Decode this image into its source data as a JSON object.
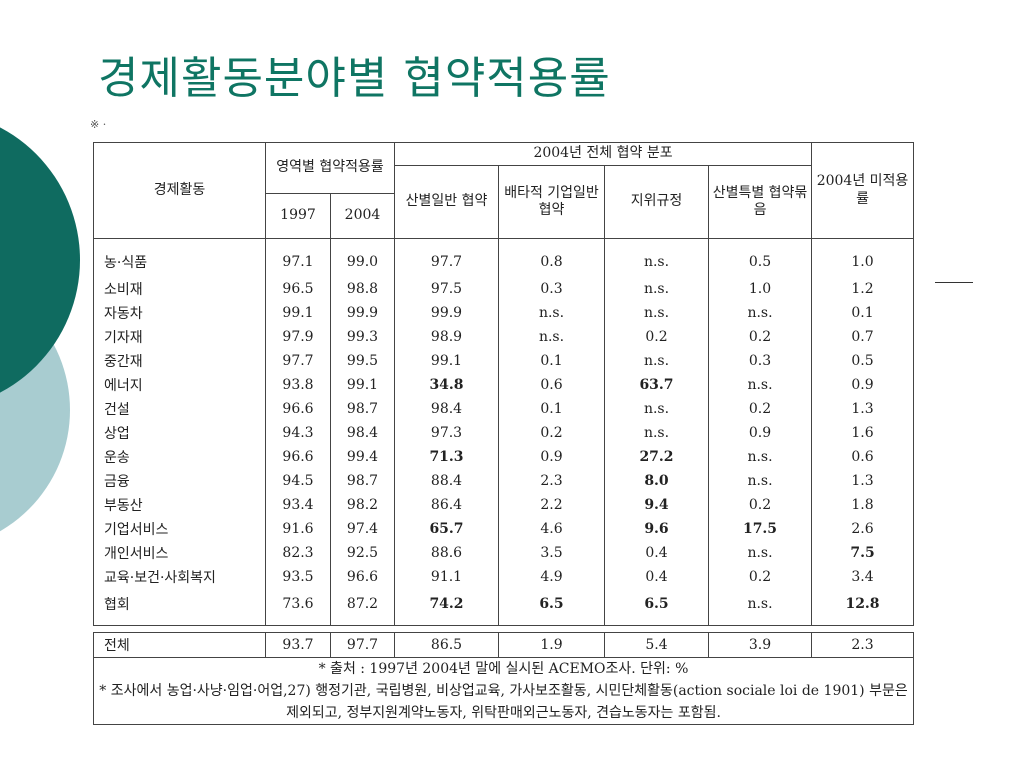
{
  "title": "경제활동분야별 협약적용률",
  "cut_mark": "※ ·",
  "table": {
    "header": {
      "activity": "경제활동",
      "coverage_group": "영역별 협약적용률",
      "years": [
        "1997",
        "2004"
      ],
      "dist_group": "2004년 전체 협약 분포",
      "dist_cols": [
        "산별일반 협약",
        "배타적 기업일반 협약",
        "지위규정",
        "산별특별 협약묶음"
      ],
      "uncovered": "2004년 미적용률"
    },
    "rows": [
      {
        "name": "농·식품",
        "v": [
          "97.1",
          "99.0",
          "97.7",
          "0.8",
          "n.s.",
          "0.5",
          "1.0"
        ],
        "bold": []
      },
      {
        "name": "소비재",
        "v": [
          "96.5",
          "98.8",
          "97.5",
          "0.3",
          "n.s.",
          "1.0",
          "1.2"
        ],
        "bold": []
      },
      {
        "name": "자동차",
        "v": [
          "99.1",
          "99.9",
          "99.9",
          "n.s.",
          "n.s.",
          "n.s.",
          "0.1"
        ],
        "bold": []
      },
      {
        "name": "기자재",
        "v": [
          "97.9",
          "99.3",
          "98.9",
          "n.s.",
          "0.2",
          "0.2",
          "0.7"
        ],
        "bold": []
      },
      {
        "name": "중간재",
        "v": [
          "97.7",
          "99.5",
          "99.1",
          "0.1",
          "n.s.",
          "0.3",
          "0.5"
        ],
        "bold": []
      },
      {
        "name": "에너지",
        "v": [
          "93.8",
          "99.1",
          "34.8",
          "0.6",
          "63.7",
          "n.s.",
          "0.9"
        ],
        "bold": [
          2,
          4
        ]
      },
      {
        "name": "건설",
        "v": [
          "96.6",
          "98.7",
          "98.4",
          "0.1",
          "n.s.",
          "0.2",
          "1.3"
        ],
        "bold": []
      },
      {
        "name": "상업",
        "v": [
          "94.3",
          "98.4",
          "97.3",
          "0.2",
          "n.s.",
          "0.9",
          "1.6"
        ],
        "bold": []
      },
      {
        "name": "운송",
        "v": [
          "96.6",
          "99.4",
          "71.3",
          "0.9",
          "27.2",
          "n.s.",
          "0.6"
        ],
        "bold": [
          2,
          4
        ]
      },
      {
        "name": "금융",
        "v": [
          "94.5",
          "98.7",
          "88.4",
          "2.3",
          "8.0",
          "n.s.",
          "1.3"
        ],
        "bold": [
          4
        ]
      },
      {
        "name": "부동산",
        "v": [
          "93.4",
          "98.2",
          "86.4",
          "2.2",
          "9.4",
          "0.2",
          "1.8"
        ],
        "bold": [
          4
        ]
      },
      {
        "name": "기업서비스",
        "v": [
          "91.6",
          "97.4",
          "65.7",
          "4.6",
          "9.6",
          "17.5",
          "2.6"
        ],
        "bold": [
          2,
          4,
          5
        ]
      },
      {
        "name": "개인서비스",
        "v": [
          "82.3",
          "92.5",
          "88.6",
          "3.5",
          "0.4",
          "n.s.",
          "7.5"
        ],
        "bold": [
          6
        ]
      },
      {
        "name": "교육·보건·사회복지",
        "v": [
          "93.5",
          "96.6",
          "91.1",
          "4.9",
          "0.4",
          "0.2",
          "3.4"
        ],
        "bold": []
      },
      {
        "name": "협회",
        "v": [
          "73.6",
          "87.2",
          "74.2",
          "6.5",
          "6.5",
          "n.s.",
          "12.8"
        ],
        "bold": [
          2,
          3,
          4,
          6
        ]
      }
    ],
    "total": {
      "name": "전체",
      "v": [
        "93.7",
        "97.7",
        "86.5",
        "1.9",
        "5.4",
        "3.9",
        "2.3"
      ]
    },
    "notes": [
      "* 출처 : 1997년 2004년 말에 실시된 ACEMO조사. 단위: %",
      "* 조사에서 농업·사냥·임업·어업,27) 행정기관, 국립병원, 비상업교육, 가사보조활동, 시민단체활동(action sociale loi de 1901) 부문은 제외되고, 정부지원계약노동자, 위탁판매외근노동자, 견습노동자는 포함됨."
    ]
  },
  "colors": {
    "title": "#0f7563",
    "circle_dark": "#0f6b60",
    "circle_light": "#a8ccd0"
  }
}
